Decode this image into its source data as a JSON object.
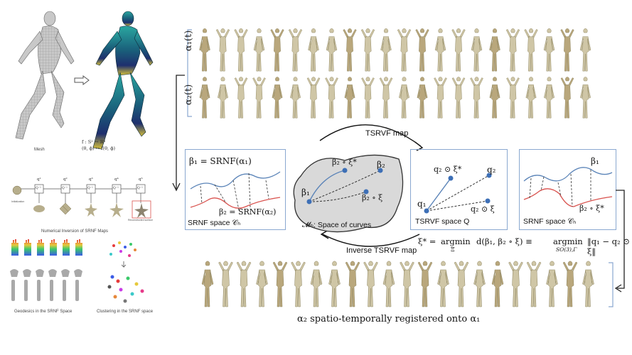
{
  "left_panel": {
    "mesh_caption": "Mesh",
    "map_text_1": "f : S² → ℝ³",
    "map_text_2": "(θ, ϕ) ↦ f(θ, ϕ)",
    "q_labels": [
      "q¹",
      "q²",
      "q³",
      "q⁴",
      "q⁵"
    ],
    "box_label": "Q⁻¹",
    "initialization": "Initialization",
    "reconstructed": "Reconstructed surface",
    "inversion_caption": "Numerical Inversion of SRNF Maps",
    "geodesics_caption": "Geodesics in the SRNF Space",
    "clustering_caption": "Clustering in the SRNF space"
  },
  "rows": {
    "alpha1": "α₁(t)",
    "alpha2": "α₂(t)",
    "figure_count": 22
  },
  "srnf_left": {
    "beta1_eq": "β₁ = SRNF(α₁)",
    "beta2_eq": "β₂ = SRNF(α₂)",
    "space_label": "SRNF space 𝒞ₕ"
  },
  "curves_space": {
    "beta1": "β₁",
    "beta2": "β₂",
    "beta2_xi_star": "β₂ ∘ ξ*",
    "beta2_xi": "β₂ ∘ ξ",
    "space_label": "𝓜ₕ: Space of curves"
  },
  "tsrvf": {
    "q1": "q₁",
    "q2": "q₂",
    "q2_xi_star": "q₂ ⊙ ξ*",
    "q2_xi": "q₂ ⊙ ξ",
    "space_label": "TSRVF space Q"
  },
  "srnf_right": {
    "beta1": "β₁",
    "beta2_xi_star": "β₂ ∘ ξ*",
    "space_label": "SRNF space 𝒞ₕ"
  },
  "arrows": {
    "tsrvf_map": "TSRVF map",
    "inverse_tsrvf_map": "Inverse TSRVF map"
  },
  "equation": {
    "lhs": "ξ* =",
    "argmin1": "argmin",
    "sub1": "Ξ",
    "mid": "d(β₁, β₂ ∘ ξ) ≡",
    "argmin2": "argmin",
    "sub2": "SO(3),Γ",
    "rhs": "‖q₁ − q₂ ⊙ ξ‖"
  },
  "result_caption": "α₂ spatio-temporally registered onto α₁",
  "colors": {
    "box_border": "#8aa8d0",
    "curve_blue": "#5b84b8",
    "curve_red": "#d9534f",
    "dot_blue": "#3d6fb6",
    "figure_fill": "#cfc6a6",
    "blob_fill": "#d9d9d9"
  }
}
